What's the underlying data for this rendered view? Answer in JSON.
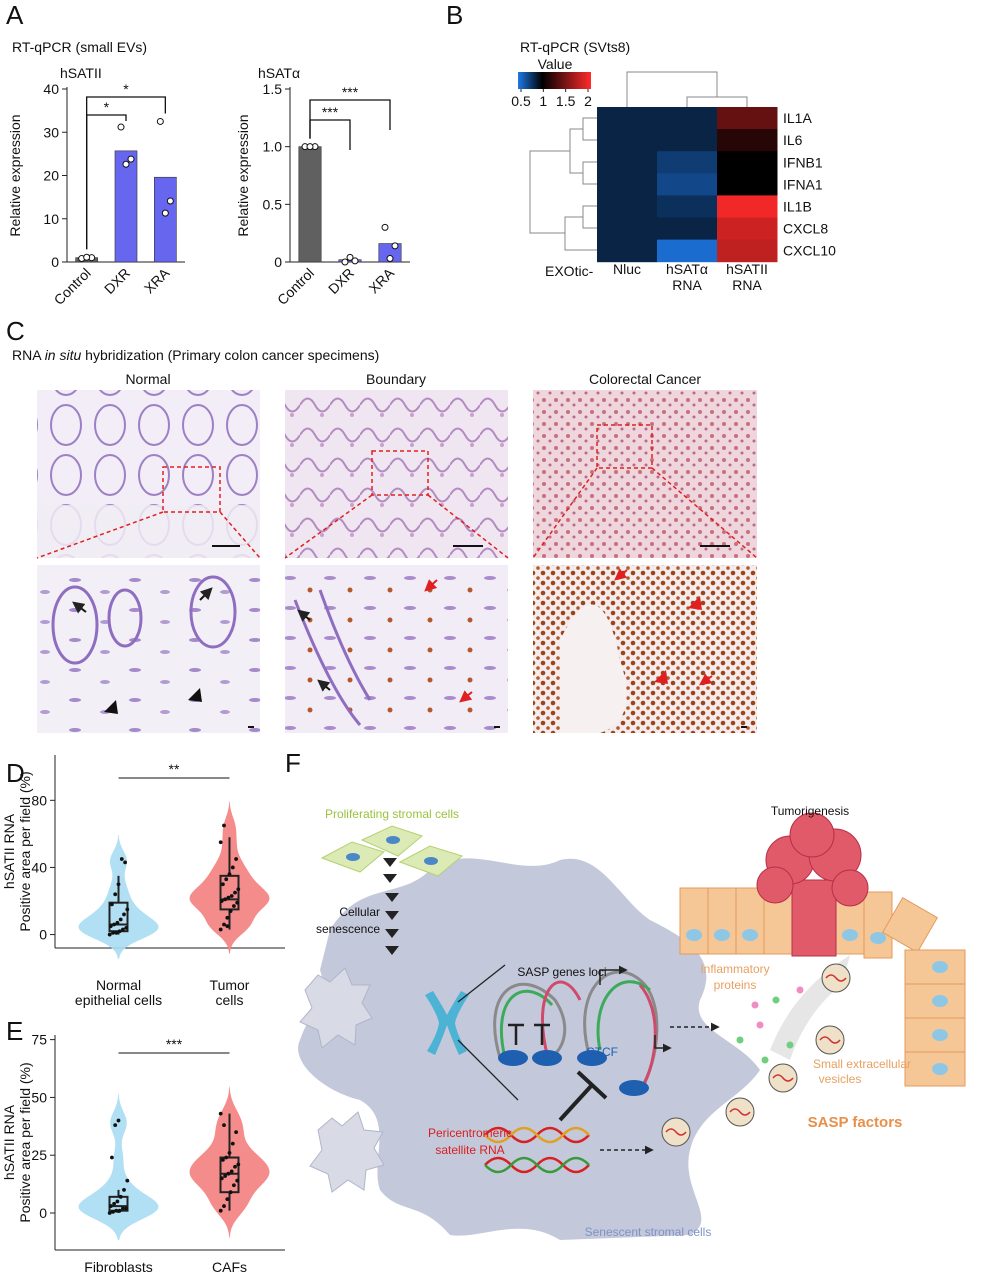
{
  "panel_labels": [
    "A",
    "B",
    "C",
    "D",
    "E",
    "F"
  ],
  "panel_a_title": "RT-qPCR (small EVs)",
  "chart_data": [
    {
      "type": "bar",
      "title": "hSATII",
      "ylabel": "Relative expression",
      "categories": [
        "Control",
        "DXR",
        "XRA"
      ],
      "values": [
        1,
        25.7,
        19.6
      ],
      "points": [
        [
          0.8,
          1,
          1.1
        ],
        [
          31.2,
          23.8,
          22.6
        ],
        [
          32.5,
          14.1,
          11.3
        ]
      ],
      "colors": [
        "#606060",
        "#6666ee",
        "#6666ee"
      ],
      "ylim": [
        0,
        40
      ],
      "yticks": [
        0,
        10,
        20,
        30,
        40
      ],
      "annotations": [
        "*",
        "*"
      ]
    },
    {
      "type": "bar",
      "title": "hSATα",
      "ylabel": "Relative expression",
      "categories": [
        "Control",
        "DXR",
        "XRA"
      ],
      "values": [
        1,
        0.02,
        0.16
      ],
      "points": [
        [
          1,
          1,
          1
        ],
        [
          0,
          0.01,
          0.04
        ],
        [
          0.3,
          0.14,
          0.03
        ]
      ],
      "colors": [
        "#606060",
        "#6666ee",
        "#6666ee"
      ],
      "ylim": [
        0,
        1.5
      ],
      "yticks": [
        0,
        0.5,
        {
          "value": 1,
          "label": "1.0"
        },
        1.5
      ],
      "annotations": [
        "***",
        "***"
      ]
    },
    {
      "type": "heatmap",
      "title": "RT-qPCR (SVts8)",
      "legend_title": "Value",
      "colorbar_ticks": [
        0.5,
        1,
        1.5,
        2
      ],
      "clim": [
        0.5,
        2
      ],
      "cmid": 1,
      "colors": [
        "#1e78e6",
        "#000000",
        "#ff2a2a"
      ],
      "rows": [
        "IL1A",
        "IL6",
        "IFNB1",
        "IFNA1",
        "IL1B",
        "CXCL8",
        "CXCL10"
      ],
      "column_prefix": "EXOtic-",
      "columns": [
        [
          "Nluc"
        ],
        [
          "hSATα",
          "RNA"
        ],
        [
          "hSATII",
          "RNA"
        ]
      ],
      "values": [
        [
          0.85,
          0.85,
          1.4
        ],
        [
          0.85,
          0.85,
          1.15
        ],
        [
          0.85,
          0.75,
          1.0
        ],
        [
          0.85,
          0.7,
          1.0
        ],
        [
          0.85,
          0.8,
          1.95
        ],
        [
          0.85,
          0.85,
          1.8
        ],
        [
          0.85,
          0.55,
          1.75
        ]
      ]
    },
    {
      "type": "violin",
      "ylabel": [
        "hSATII RNA",
        "Positive area per field (%)"
      ],
      "categories": [
        [
          "Normal",
          "epithelial cells"
        ],
        [
          "Tumor",
          "cells"
        ]
      ],
      "colors": [
        "#a9dcf2",
        "#f47f7f"
      ],
      "points": [
        [
          0,
          1,
          1,
          2,
          3,
          4,
          5,
          6,
          7,
          9,
          12,
          15,
          18,
          24,
          30,
          45,
          43
        ],
        [
          3,
          6,
          10,
          14,
          17,
          19,
          20,
          21,
          22,
          23,
          25,
          27,
          30,
          33,
          36,
          40,
          45,
          55,
          65,
          5
        ]
      ],
      "box": [
        {
          "min": 0,
          "q1": 2,
          "median": 6,
          "q3": 19,
          "max": 35
        },
        {
          "min": 3,
          "q1": 15,
          "median": 21,
          "q3": 35,
          "max": 58
        }
      ],
      "ylim": [
        -8,
        107
      ],
      "yticks": [
        0,
        40,
        80
      ],
      "annotation": "**"
    },
    {
      "type": "violin",
      "ylabel": [
        "hSATII RNA",
        "Positive area per field (%)"
      ],
      "categories": [
        [
          "Fibroblasts"
        ],
        [
          "CAFs"
        ]
      ],
      "colors": [
        "#a9dcf2",
        "#f47f7f"
      ],
      "points": [
        [
          0,
          0.5,
          1,
          1,
          2,
          2,
          3,
          4,
          5,
          7,
          10,
          14,
          24,
          38,
          40
        ],
        [
          1,
          3,
          6,
          9,
          12,
          14,
          15,
          16,
          17,
          18,
          20,
          21,
          23,
          24,
          26,
          30,
          35,
          43,
          38
        ]
      ],
      "box": [
        {
          "min": 0,
          "q1": 1,
          "median": 3,
          "q3": 7,
          "max": 10
        },
        {
          "min": 1,
          "q1": 9,
          "median": 17,
          "q3": 24,
          "max": 43
        }
      ],
      "ylim": [
        -16,
        77
      ],
      "yticks": [
        0,
        25,
        50,
        75
      ],
      "annotation": "***"
    }
  ],
  "panel_c": {
    "title_parts": [
      "RNA ",
      "in situ",
      " hybridization (Primary colon cancer specimens)"
    ],
    "columns": [
      "Normal",
      "Boundary",
      "Colorectal Cancer"
    ]
  },
  "diagram": {
    "proliferating": "Proliferating stromal cells",
    "senescence": [
      "Cellular",
      "senescence"
    ],
    "tumorigenesis": "Tumorigenesis",
    "loci": "SASP genes loci",
    "ctcf": "CTCF",
    "satellite": [
      "Pericentromeric",
      "satellite RNA"
    ],
    "inflammatory": [
      "Inflammatory",
      "proteins"
    ],
    "vesicles": [
      "Small extracellular",
      "vesicles"
    ],
    "factors": "SASP factors",
    "senescent": "Senescent stromal cells"
  }
}
